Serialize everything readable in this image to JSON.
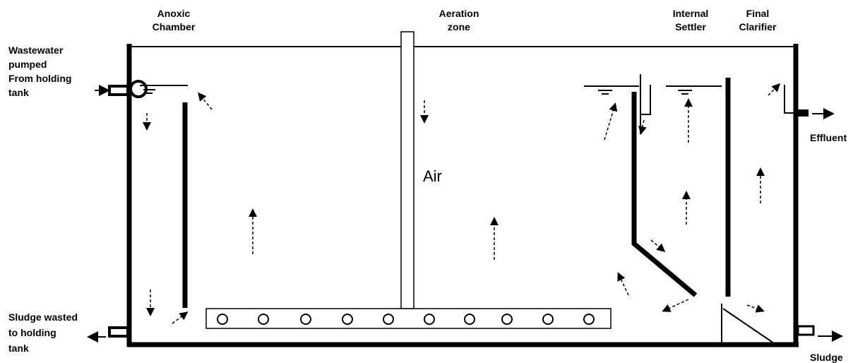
{
  "labels": {
    "anoxic": [
      "Anoxic",
      "Chamber"
    ],
    "aeration": [
      "Aeration",
      "zone"
    ],
    "internal_settler": [
      "Internal",
      "Settler"
    ],
    "final_clarifier": [
      "Final",
      "Clarifier"
    ],
    "inlet": [
      "Wastewater",
      "pumped",
      "From holding",
      "tank"
    ],
    "effluent": [
      "Effluent"
    ],
    "sludge_wasted": [
      "Sludge wasted",
      "to holding",
      "tank"
    ],
    "sludge": [
      "Sludge"
    ],
    "air": [
      "Air"
    ]
  }
}
